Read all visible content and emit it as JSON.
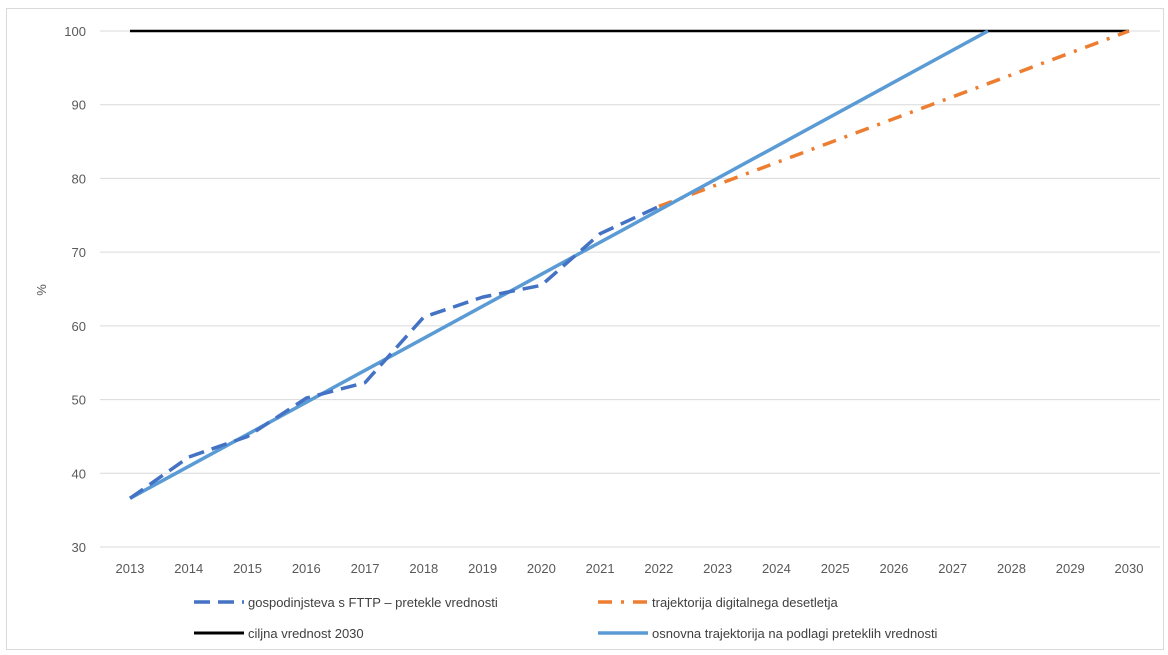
{
  "chart_data": {
    "type": "line",
    "ylabel": "%",
    "ylim": [
      30,
      100
    ],
    "yticks": [
      30,
      40,
      50,
      60,
      70,
      80,
      90,
      100
    ],
    "categories": [
      "2013",
      "2014",
      "2015",
      "2016",
      "2017",
      "2018",
      "2019",
      "2020",
      "2021",
      "2022",
      "2023",
      "2024",
      "2025",
      "2026",
      "2027",
      "2028",
      "2029",
      "2030"
    ],
    "grid": true,
    "legend_position": "bottom",
    "series": [
      {
        "name": "gospodinjsteva s FTTP – pretekle vrednosti",
        "color": "#4472c4",
        "style": "dashed",
        "points": [
          [
            "2013",
            36.6
          ],
          [
            "2014",
            42.2
          ],
          [
            "2015",
            45.0
          ],
          [
            "2016",
            50.2
          ],
          [
            "2017",
            52.3
          ],
          [
            "2018",
            61.2
          ],
          [
            "2019",
            63.9
          ],
          [
            "2020",
            65.5
          ],
          [
            "2021",
            72.5
          ],
          [
            "2022",
            76.2
          ]
        ]
      },
      {
        "name": "trajektorija digitalnega desetletja",
        "color": "#ed7d31",
        "style": "dash-dot",
        "points": [
          [
            "2022",
            76.2
          ],
          [
            "2030",
            100
          ]
        ]
      },
      {
        "name": "ciljna vrednost 2030",
        "color": "#000000",
        "style": "solid",
        "points": [
          [
            "2013",
            100
          ],
          [
            "2030",
            100
          ]
        ]
      },
      {
        "name": "osnovna trajektorija na podlagi preteklih vrednosti",
        "color": "#5b9bd5",
        "style": "solid",
        "points": [
          [
            "2013",
            36.6
          ],
          [
            "2027.6",
            100
          ]
        ]
      }
    ]
  }
}
